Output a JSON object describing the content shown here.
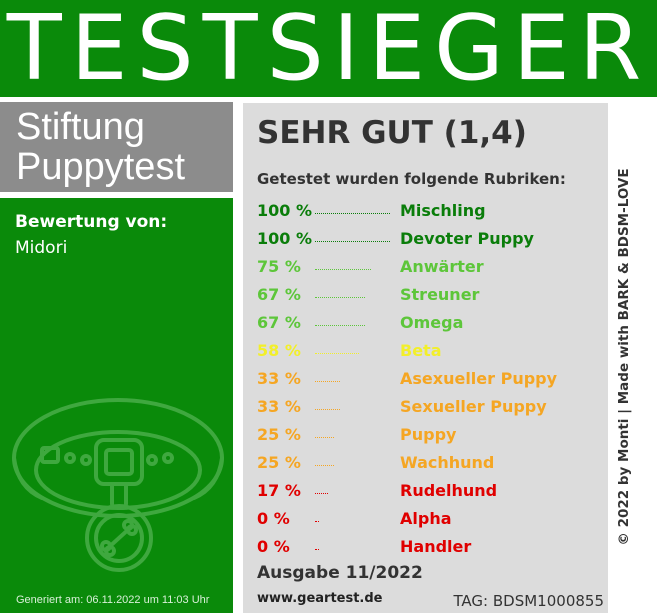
{
  "banner": {
    "title": "TESTSIEGER"
  },
  "brand": {
    "line1": "Stiftung",
    "line2": "Puppytest"
  },
  "reviewer": {
    "label": "Bewertung von:",
    "name": "Midori"
  },
  "generated": "Generiert am: 06.11.2022 um 11:03 Uhr",
  "rating": "SEHR GUT (1,4)",
  "tested_intro": "Getestet wurden folgende Rubriken:",
  "categories": [
    {
      "percent": "100 %",
      "value": 100,
      "name": "Mischling",
      "color": "#0a7d0a"
    },
    {
      "percent": "100 %",
      "value": 100,
      "name": "Devoter Puppy",
      "color": "#0a7d0a"
    },
    {
      "percent": "75 %",
      "value": 75,
      "name": "Anwärter",
      "color": "#5dc63a"
    },
    {
      "percent": "67 %",
      "value": 67,
      "name": "Streuner",
      "color": "#5dc63a"
    },
    {
      "percent": "67 %",
      "value": 67,
      "name": "Omega",
      "color": "#5dc63a"
    },
    {
      "percent": "58 %",
      "value": 58,
      "name": "Beta",
      "color": "#f2ef2a"
    },
    {
      "percent": "33 %",
      "value": 33,
      "name": "Asexueller Puppy",
      "color": "#f5a623"
    },
    {
      "percent": "33 %",
      "value": 33,
      "name": "Sexueller Puppy",
      "color": "#f5a623"
    },
    {
      "percent": "25 %",
      "value": 25,
      "name": "Puppy",
      "color": "#f5a623"
    },
    {
      "percent": "25 %",
      "value": 25,
      "name": "Wachhund",
      "color": "#f5a623"
    },
    {
      "percent": "17 %",
      "value": 17,
      "name": "Rudelhund",
      "color": "#e00000"
    },
    {
      "percent": "0 %",
      "value": 0,
      "name": "Alpha",
      "color": "#e00000"
    },
    {
      "percent": "0 %",
      "value": 0,
      "name": "Handler",
      "color": "#e00000"
    }
  ],
  "issue": "Ausgabe 11/2022",
  "site": "www.geartest.de",
  "tag": "TAG: BDSM1000855",
  "credit": "© 2022 by Monti | Made with BARK & BDSM-LOVE",
  "icons": {
    "badge": "dog-collar-icon"
  },
  "colors": {
    "green": "#0a8a0a",
    "gray": "#8c8c8c",
    "panel": "#dcdcdc"
  }
}
